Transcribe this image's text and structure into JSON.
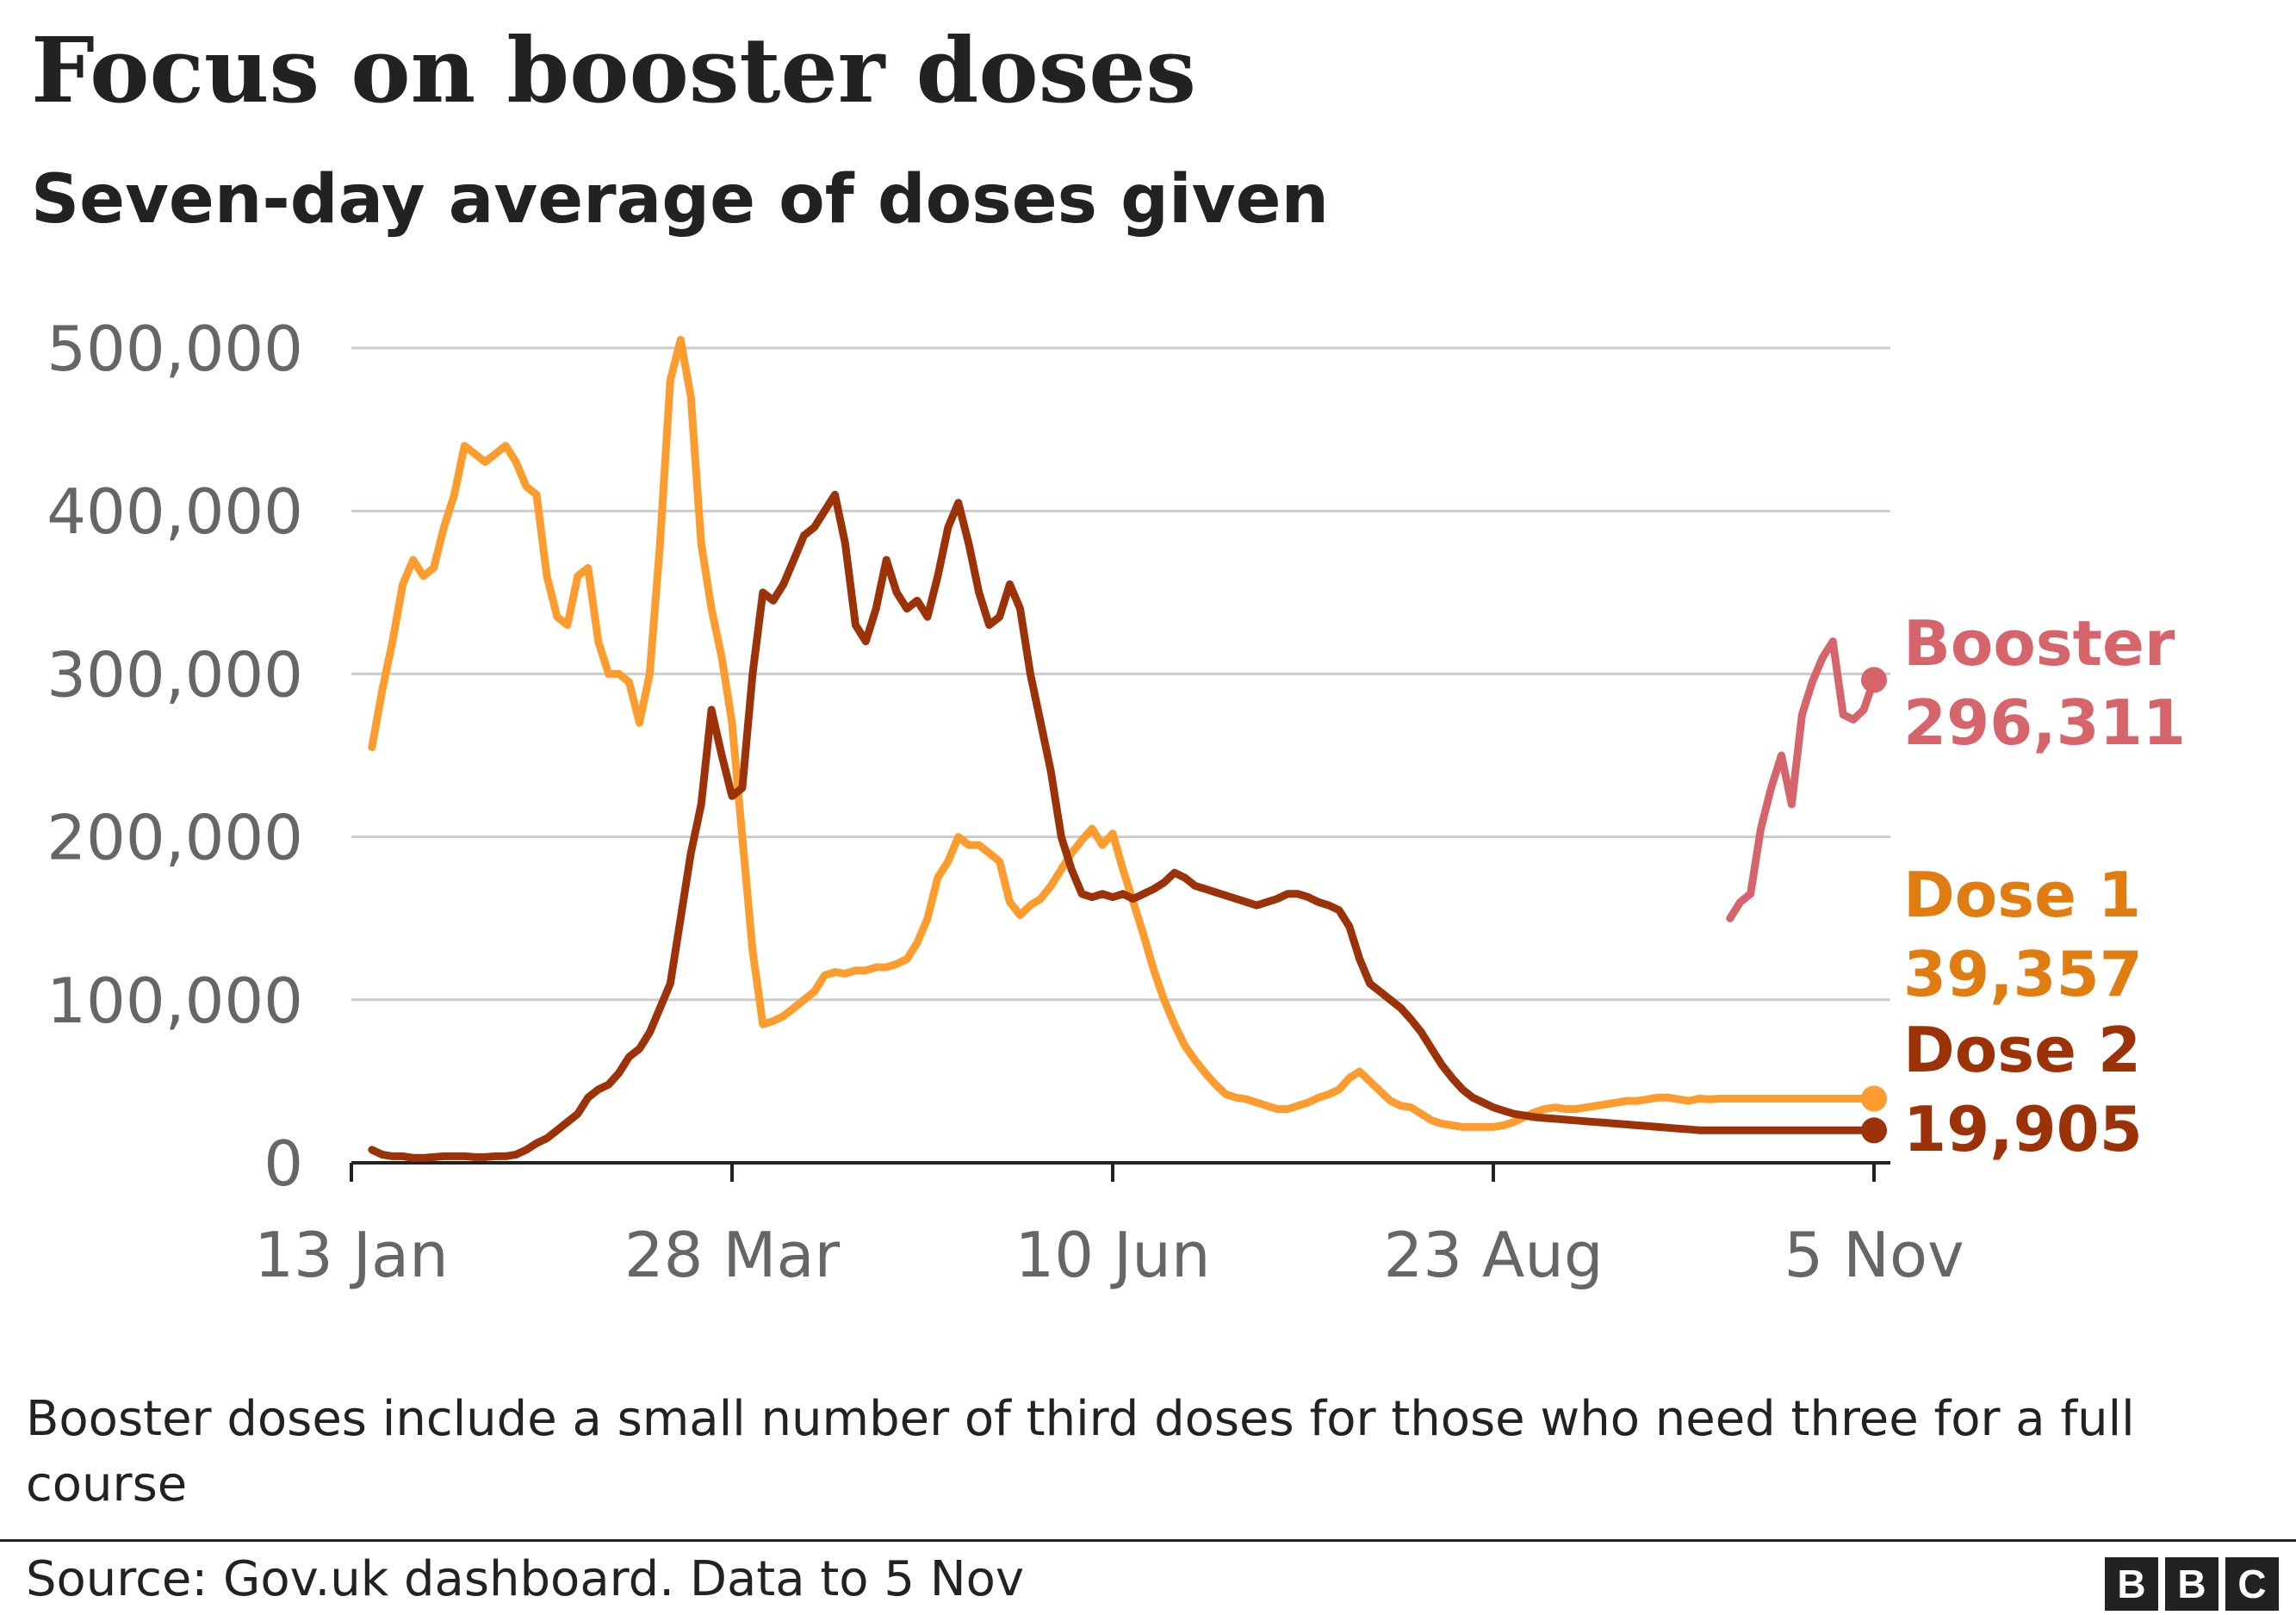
{
  "header": {
    "title": "Focus on booster doses",
    "subtitle": "Seven-day average of doses given"
  },
  "footer": {
    "note": "Booster doses include a small number of third doses for those who need three for a full course",
    "source": "Source: Gov.uk dashboard. Data to 5 Nov",
    "logo_letters": [
      "B",
      "B",
      "C"
    ]
  },
  "colors": {
    "booster": "#d6646b",
    "dose1_line": "#fc9c2f",
    "dose1_label": "#e07c10",
    "dose2": "#9c3208",
    "grid": "#cccccc",
    "axis": "#222222",
    "tick_text": "#666666"
  },
  "chart_data": {
    "type": "line",
    "title": "Focus on booster doses",
    "subtitle": "Seven-day average of doses given",
    "xlabel": "",
    "ylabel": "",
    "x_unit": "days since 13 Jan",
    "xlim": [
      0,
      296
    ],
    "ylim": [
      0,
      500000
    ],
    "y_ticks": [
      0,
      100000,
      200000,
      300000,
      400000,
      500000
    ],
    "y_tick_labels": [
      "0",
      "100,000",
      "200,000",
      "300,000",
      "400,000",
      "500,000"
    ],
    "x_ticks": [
      0,
      74,
      148,
      222,
      296
    ],
    "x_tick_labels": [
      "13 Jan",
      "28 Mar",
      "10 Jun",
      "23 Aug",
      "5 Nov"
    ],
    "grid": true,
    "series": [
      {
        "name": "Dose 1",
        "label_name": "Dose 1",
        "label_value": "39,357",
        "color": "#fc9c2f",
        "x": [
          4,
          6,
          8,
          10,
          12,
          14,
          16,
          18,
          20,
          22,
          24,
          26,
          28,
          30,
          32,
          34,
          36,
          38,
          40,
          42,
          44,
          46,
          48,
          50,
          52,
          54,
          56,
          58,
          60,
          62,
          64,
          66,
          68,
          70,
          72,
          74,
          76,
          78,
          80,
          82,
          84,
          86,
          88,
          90,
          92,
          94,
          96,
          98,
          100,
          102,
          104,
          106,
          108,
          110,
          112,
          114,
          116,
          118,
          120,
          122,
          124,
          126,
          128,
          130,
          132,
          134,
          136,
          138,
          140,
          142,
          144,
          146,
          148,
          150,
          152,
          154,
          156,
          158,
          160,
          162,
          164,
          166,
          168,
          170,
          172,
          174,
          176,
          178,
          180,
          182,
          184,
          186,
          188,
          190,
          192,
          194,
          196,
          198,
          200,
          202,
          204,
          206,
          208,
          210,
          212,
          214,
          216,
          218,
          220,
          222,
          224,
          226,
          228,
          230,
          232,
          234,
          236,
          238,
          240,
          242,
          244,
          246,
          248,
          250,
          252,
          254,
          256,
          258,
          260,
          262,
          264,
          266,
          268,
          270,
          272,
          274,
          276,
          278,
          280,
          282,
          284,
          286,
          288,
          290,
          292,
          294,
          296
        ],
        "values": [
          255000,
          290000,
          320000,
          355000,
          370000,
          360000,
          365000,
          390000,
          410000,
          440000,
          435000,
          430000,
          435000,
          440000,
          430000,
          415000,
          410000,
          360000,
          335000,
          330000,
          360000,
          365000,
          320000,
          300000,
          300000,
          295000,
          270000,
          300000,
          380000,
          480000,
          505000,
          470000,
          380000,
          340000,
          310000,
          270000,
          200000,
          130000,
          85000,
          87000,
          90000,
          95000,
          100000,
          105000,
          115000,
          117000,
          116000,
          118000,
          118000,
          120000,
          120000,
          122000,
          125000,
          135000,
          150000,
          175000,
          185000,
          200000,
          195000,
          195000,
          190000,
          185000,
          160000,
          152000,
          158000,
          162000,
          170000,
          180000,
          190000,
          198000,
          205000,
          195000,
          202000,
          180000,
          160000,
          140000,
          118000,
          100000,
          85000,
          72000,
          63000,
          55000,
          48000,
          42000,
          40000,
          39000,
          37000,
          35000,
          33000,
          33000,
          35000,
          37000,
          40000,
          42000,
          45000,
          52000,
          56000,
          50000,
          44000,
          38000,
          35000,
          34000,
          30000,
          26000,
          24000,
          23000,
          22000,
          22000,
          22000,
          22000,
          23000,
          25000,
          28000,
          31000,
          33000,
          34000,
          33000,
          33000,
          34000,
          35000,
          36000,
          37000,
          38000,
          38000,
          39000,
          40000,
          40000,
          39000,
          38000,
          39357,
          39000,
          39357,
          39357,
          39357,
          39357,
          39357,
          39357,
          39357,
          39357,
          39357,
          39357,
          39357,
          39357,
          39357,
          39357,
          39357,
          39357
        ]
      },
      {
        "name": "Dose 2",
        "label_name": "Dose 2",
        "label_value": "19,905",
        "color": "#9c3208",
        "x": [
          4,
          6,
          8,
          10,
          12,
          14,
          16,
          18,
          20,
          22,
          24,
          26,
          28,
          30,
          32,
          34,
          36,
          38,
          40,
          42,
          44,
          46,
          48,
          50,
          52,
          54,
          56,
          58,
          60,
          62,
          64,
          66,
          68,
          70,
          72,
          74,
          76,
          78,
          80,
          82,
          84,
          86,
          88,
          90,
          92,
          94,
          96,
          98,
          100,
          102,
          104,
          106,
          108,
          110,
          112,
          114,
          116,
          118,
          120,
          122,
          124,
          126,
          128,
          130,
          132,
          134,
          136,
          138,
          140,
          142,
          144,
          146,
          148,
          150,
          152,
          154,
          156,
          158,
          160,
          162,
          164,
          166,
          168,
          170,
          172,
          174,
          176,
          178,
          180,
          182,
          184,
          186,
          188,
          190,
          192,
          194,
          196,
          198,
          200,
          202,
          204,
          206,
          208,
          210,
          212,
          214,
          216,
          218,
          220,
          222,
          224,
          226,
          228,
          230,
          232,
          234,
          236,
          238,
          240,
          242,
          244,
          246,
          248,
          250,
          252,
          254,
          256,
          258,
          260,
          262,
          264,
          266,
          268,
          270,
          272,
          274,
          276,
          278,
          280,
          282,
          284,
          286,
          288,
          290,
          292,
          294,
          296
        ],
        "values": [
          8000,
          5000,
          4000,
          4000,
          3000,
          3000,
          3500,
          4000,
          4000,
          4000,
          3500,
          3500,
          4000,
          4000,
          5000,
          8000,
          12000,
          15000,
          20000,
          25000,
          30000,
          40000,
          45000,
          48000,
          55000,
          65000,
          70000,
          80000,
          95000,
          110000,
          150000,
          190000,
          220000,
          278000,
          250000,
          225000,
          230000,
          300000,
          350000,
          345000,
          355000,
          370000,
          385000,
          390000,
          400000,
          410000,
          380000,
          330000,
          320000,
          340000,
          370000,
          350000,
          340000,
          345000,
          335000,
          360000,
          390000,
          405000,
          380000,
          350000,
          330000,
          335000,
          355000,
          340000,
          300000,
          270000,
          240000,
          200000,
          180000,
          165000,
          163000,
          165000,
          163000,
          165000,
          162000,
          165000,
          168000,
          172000,
          178000,
          175000,
          170000,
          168000,
          166000,
          164000,
          162000,
          160000,
          158000,
          160000,
          162000,
          165000,
          165000,
          163000,
          160000,
          158000,
          155000,
          145000,
          125000,
          110000,
          105000,
          100000,
          95000,
          88000,
          80000,
          70000,
          60000,
          52000,
          45000,
          40000,
          37000,
          34000,
          32000,
          30000,
          29000,
          28000,
          27500,
          27000,
          26500,
          26000,
          25500,
          25000,
          24500,
          24000,
          23500,
          23000,
          22500,
          22000,
          21500,
          21000,
          20500,
          20000,
          19905,
          19905,
          19905,
          19905,
          19905,
          19905,
          19905,
          19905,
          19905,
          19905,
          19905,
          19905,
          19905,
          19905,
          19905,
          19905,
          19905
        ],
        "note": "x/values arrays trimmed to shared range"
      },
      {
        "name": "Booster",
        "label_name": "Booster",
        "label_value": "296,311",
        "color": "#d6646b",
        "x": [
          268,
          270,
          272,
          274,
          276,
          278,
          280,
          282,
          284,
          286,
          288,
          290,
          292,
          294,
          296
        ],
        "values": [
          150000,
          160000,
          165000,
          205000,
          230000,
          250000,
          220000,
          275000,
          295000,
          310000,
          320000,
          275000,
          272000,
          278000,
          296311
        ]
      }
    ]
  }
}
